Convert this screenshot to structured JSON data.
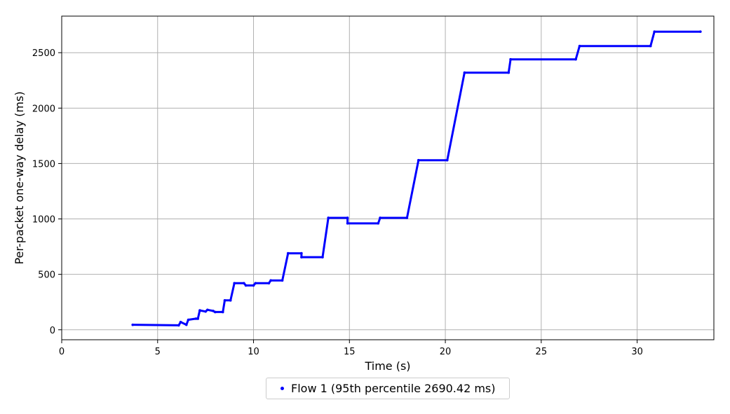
{
  "chart_data": {
    "type": "scatter",
    "title": "",
    "xlabel": "Time (s)",
    "ylabel": "Per-packet one-way delay (ms)",
    "xlim": [
      0,
      34
    ],
    "ylim": [
      -90,
      2830
    ],
    "xticks": [
      0,
      5,
      10,
      15,
      20,
      25,
      30
    ],
    "yticks": [
      0,
      500,
      1000,
      1500,
      2000,
      2500
    ],
    "grid": true,
    "legend_position": "bottom-center",
    "series": [
      {
        "name": "Flow 1 (95th percentile 2690.42 ms)",
        "color": "#0000ff",
        "marker": "dot",
        "points": [
          [
            3.7,
            45
          ],
          [
            6.1,
            40
          ],
          [
            6.2,
            70
          ],
          [
            6.5,
            45
          ],
          [
            6.6,
            90
          ],
          [
            7.0,
            100
          ],
          [
            7.1,
            100
          ],
          [
            7.2,
            175
          ],
          [
            7.5,
            165
          ],
          [
            7.6,
            180
          ],
          [
            7.9,
            170
          ],
          [
            8.0,
            160
          ],
          [
            8.4,
            160
          ],
          [
            8.5,
            265
          ],
          [
            8.8,
            265
          ],
          [
            9.0,
            420
          ],
          [
            9.5,
            420
          ],
          [
            9.6,
            400
          ],
          [
            10.0,
            400
          ],
          [
            10.1,
            420
          ],
          [
            10.8,
            420
          ],
          [
            10.9,
            445
          ],
          [
            11.5,
            445
          ],
          [
            11.8,
            690
          ],
          [
            12.5,
            690
          ],
          [
            12.5,
            655
          ],
          [
            13.6,
            655
          ],
          [
            13.9,
            1010
          ],
          [
            14.9,
            1010
          ],
          [
            14.9,
            960
          ],
          [
            16.5,
            960
          ],
          [
            16.6,
            1010
          ],
          [
            18.0,
            1010
          ],
          [
            18.6,
            1530
          ],
          [
            20.1,
            1530
          ],
          [
            21.0,
            2320
          ],
          [
            23.3,
            2320
          ],
          [
            23.4,
            2440
          ],
          [
            26.8,
            2440
          ],
          [
            27.0,
            2560
          ],
          [
            30.7,
            2560
          ],
          [
            30.9,
            2690
          ],
          [
            33.3,
            2690
          ]
        ]
      }
    ]
  }
}
